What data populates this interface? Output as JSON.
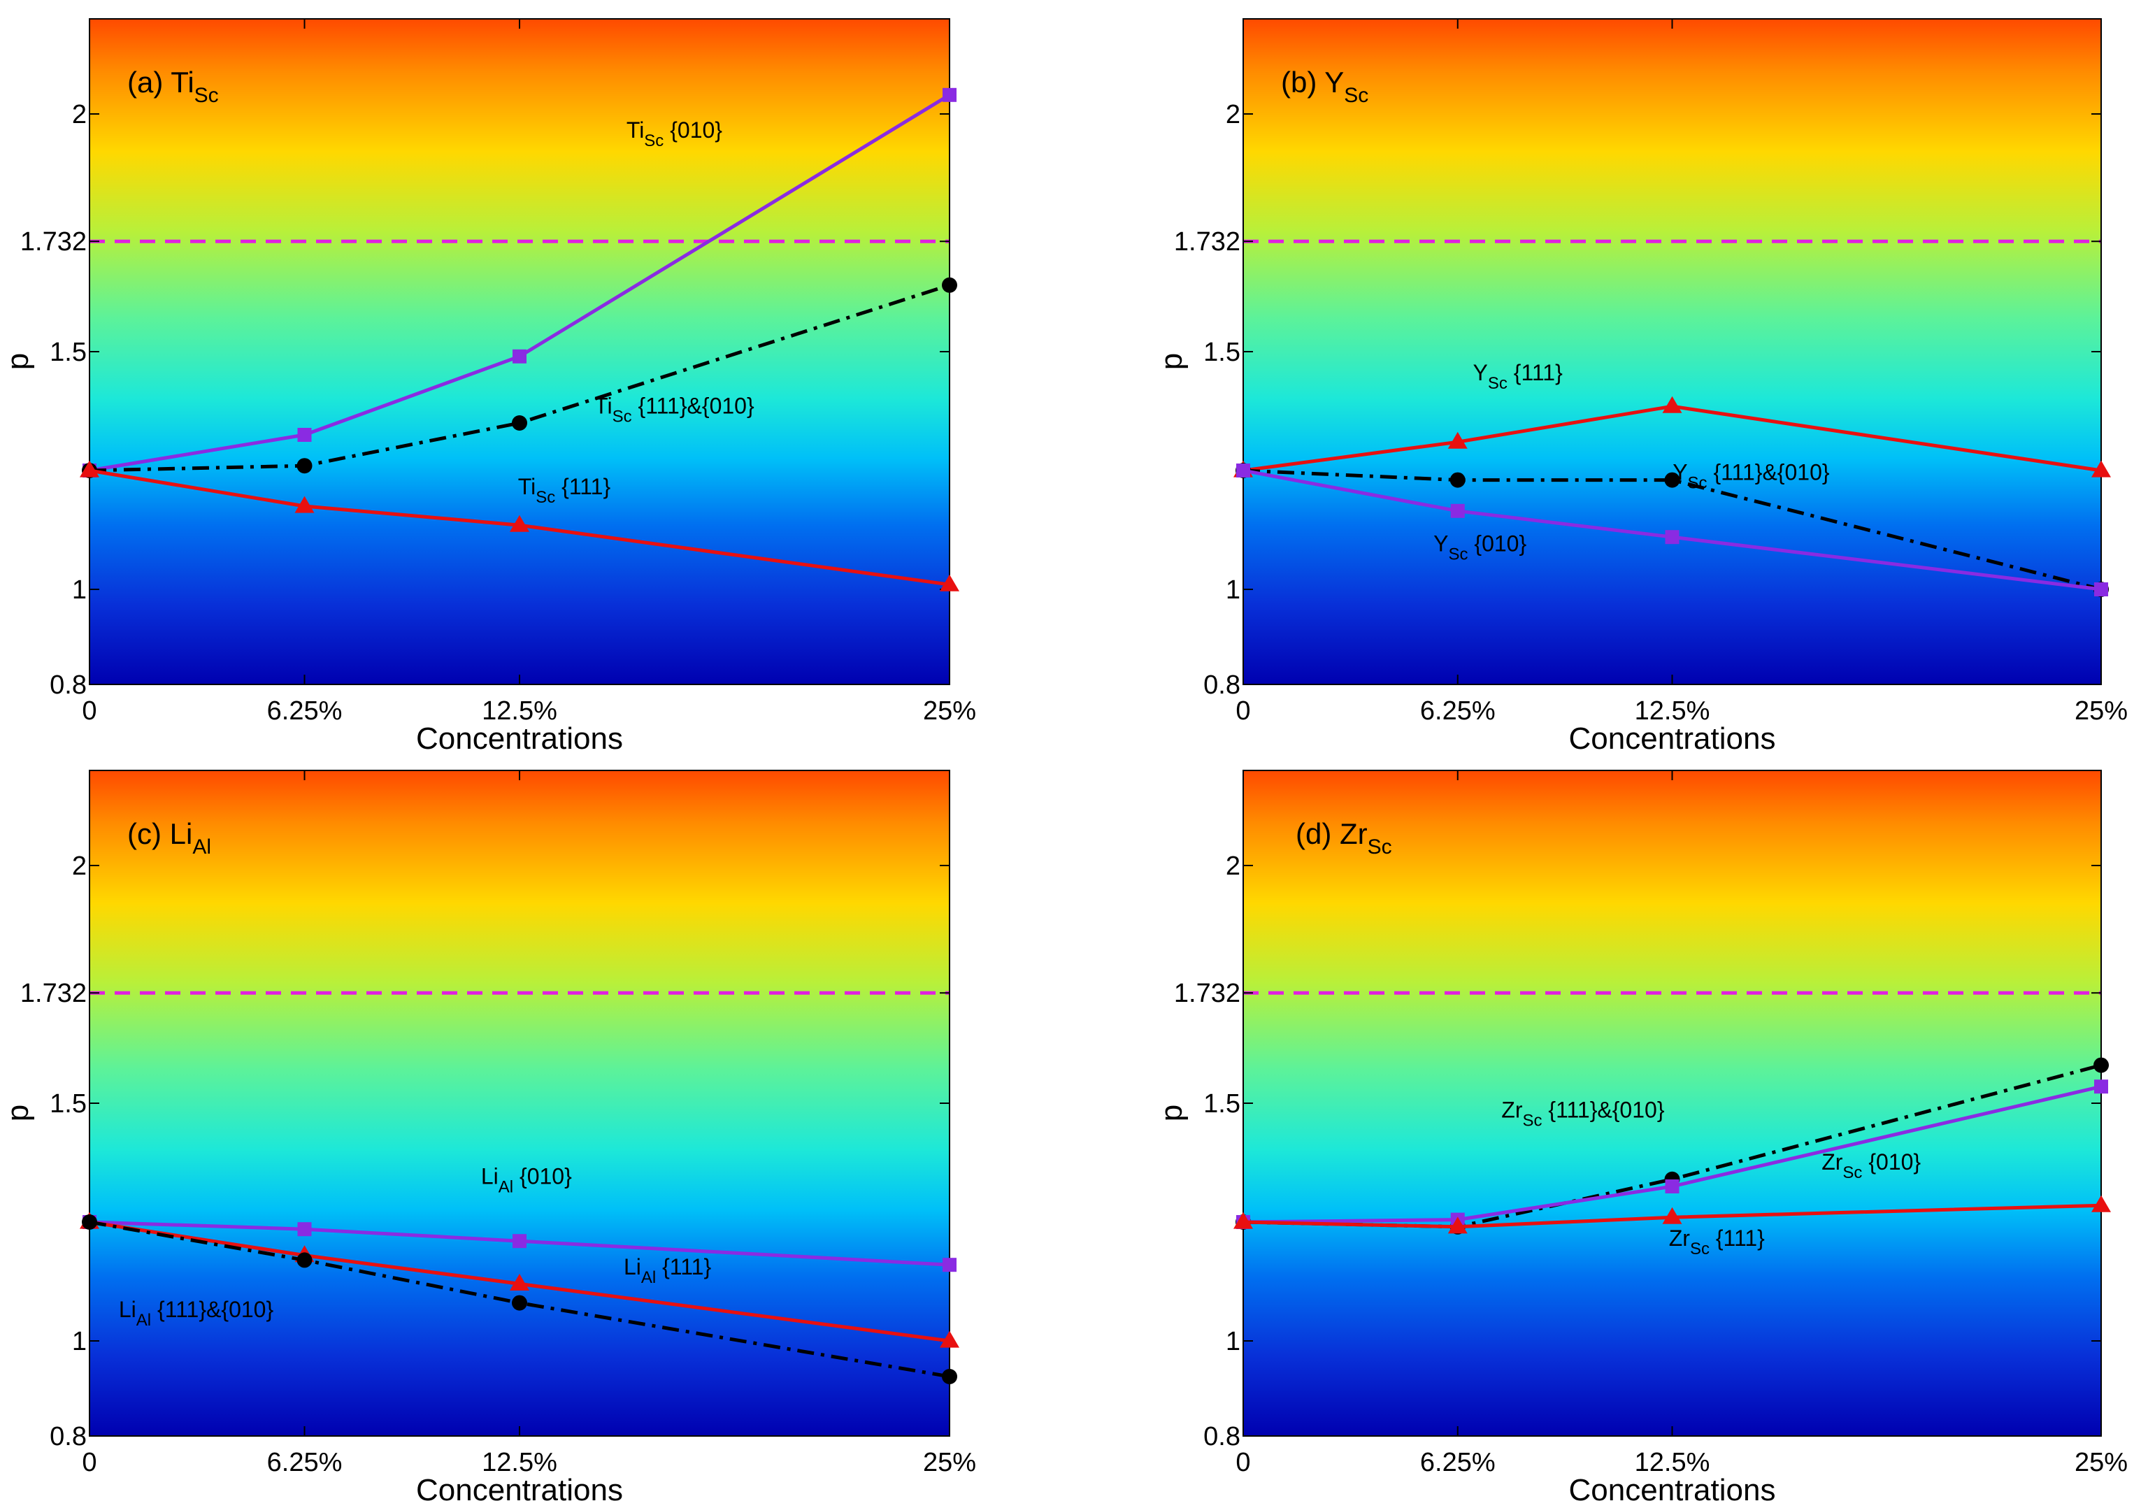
{
  "chart_data": [
    {
      "type": "line",
      "panel": "(a)",
      "title_main": "Ti",
      "title_sub": "Sc",
      "xlabel": "Concentrations",
      "ylabel": "p",
      "x_ticks": [
        "0",
        "6.25%",
        "12.5%",
        "25%"
      ],
      "x": [
        0,
        6.25,
        12.5,
        25
      ],
      "xlim": [
        0,
        25
      ],
      "ylim": [
        0.8,
        2.2
      ],
      "y_ticks": [
        0.8,
        1,
        1.5,
        1.732,
        2
      ],
      "y_tick_labels": [
        "0.8",
        "1",
        "1.5",
        "1.732",
        "2"
      ],
      "reference_line": {
        "value": 1.732,
        "color": "#e020e0"
      },
      "series": [
        {
          "name": "{010}",
          "label_main": "Ti",
          "label_sub": "Sc",
          "label_rest": "  {010}",
          "color": "#8a2be2",
          "style": "solid",
          "marker": "square",
          "values": [
            1.25,
            1.325,
            1.49,
            2.04
          ]
        },
        {
          "name": "{111}&{010}",
          "label_main": "Ti",
          "label_sub": "Sc",
          "label_rest": " {111}&{010}",
          "color": "#000000",
          "style": "dashdot",
          "marker": "circle",
          "values": [
            1.25,
            1.26,
            1.35,
            1.64
          ]
        },
        {
          "name": "{111}",
          "label_main": "Ti",
          "label_sub": "Sc",
          "label_rest": " {111}",
          "color": "#e81010",
          "style": "solid",
          "marker": "triangle",
          "values": [
            1.25,
            1.175,
            1.135,
            1.01
          ]
        }
      ]
    },
    {
      "type": "line",
      "panel": "(b)",
      "title_main": "Y",
      "title_sub": "Sc",
      "xlabel": "Concentrations",
      "ylabel": "p",
      "x_ticks": [
        "0",
        "6.25%",
        "12.5%",
        "25%"
      ],
      "x": [
        0,
        6.25,
        12.5,
        25
      ],
      "xlim": [
        0,
        25
      ],
      "ylim": [
        0.8,
        2.2
      ],
      "y_ticks": [
        0.8,
        1,
        1.5,
        1.732,
        2
      ],
      "y_tick_labels": [
        "0.8",
        "1",
        "1.5",
        "1.732",
        "2"
      ],
      "reference_line": {
        "value": 1.732,
        "color": "#e020e0"
      },
      "series": [
        {
          "name": "{111}",
          "label_main": "Y",
          "label_sub": "Sc",
          "label_rest": " {111}",
          "color": "#e81010",
          "style": "solid",
          "marker": "triangle",
          "values": [
            1.25,
            1.31,
            1.385,
            1.25
          ]
        },
        {
          "name": "{111}&{010}",
          "label_main": "Y",
          "label_sub": "Sc",
          "label_rest": " {111}&{010}",
          "color": "#000000",
          "style": "dashdot",
          "marker": "circle",
          "values": [
            1.25,
            1.23,
            1.23,
            1.0
          ]
        },
        {
          "name": "{010}",
          "label_main": "Y",
          "label_sub": "Sc",
          "label_rest": " {010}",
          "color": "#8a2be2",
          "style": "solid",
          "marker": "square",
          "values": [
            1.25,
            1.165,
            1.11,
            1.0
          ]
        }
      ]
    },
    {
      "type": "line",
      "panel": "(c)",
      "title_main": "Li",
      "title_sub": "Al",
      "xlabel": "Concentrations",
      "ylabel": "p",
      "x_ticks": [
        "0",
        "6.25%",
        "12.5%",
        "25%"
      ],
      "x": [
        0,
        6.25,
        12.5,
        25
      ],
      "xlim": [
        0,
        25
      ],
      "ylim": [
        0.8,
        2.2
      ],
      "y_ticks": [
        0.8,
        1,
        1.5,
        1.732,
        2
      ],
      "y_tick_labels": [
        "0.8",
        "1",
        "1.5",
        "1.732",
        "2"
      ],
      "reference_line": {
        "value": 1.732,
        "color": "#e020e0"
      },
      "series": [
        {
          "name": "{010}",
          "label_main": "Li",
          "label_sub": "Al",
          "label_rest": "  {010}",
          "color": "#8a2be2",
          "style": "solid",
          "marker": "square",
          "values": [
            1.25,
            1.235,
            1.21,
            1.16
          ]
        },
        {
          "name": "{111}",
          "label_main": "Li",
          "label_sub": "Al",
          "label_rest": " {111}",
          "color": "#e81010",
          "style": "solid",
          "marker": "triangle",
          "values": [
            1.25,
            1.18,
            1.12,
            1.0
          ]
        },
        {
          "name": "{111}&{010}",
          "label_main": "Li",
          "label_sub": "Al",
          "label_rest": " {111}&{010}",
          "color": "#000000",
          "style": "dashdot",
          "marker": "circle",
          "values": [
            1.25,
            1.17,
            1.08,
            0.925
          ]
        }
      ]
    },
    {
      "type": "line",
      "panel": "(d)",
      "title_main": "Zr",
      "title_sub": "Sc",
      "xlabel": "Concentrations",
      "ylabel": "p",
      "x_ticks": [
        "0",
        "6.25%",
        "12.5%",
        "25%"
      ],
      "x": [
        0,
        6.25,
        12.5,
        25
      ],
      "xlim": [
        0,
        25
      ],
      "ylim": [
        0.8,
        2.2
      ],
      "y_ticks": [
        0.8,
        1,
        1.5,
        1.732,
        2
      ],
      "y_tick_labels": [
        "0.8",
        "1",
        "1.5",
        "1.732",
        "2"
      ],
      "reference_line": {
        "value": 1.732,
        "color": "#e020e0"
      },
      "series": [
        {
          "name": "{111}&{010}",
          "label_main": "Zr",
          "label_sub": "Sc",
          "label_rest": " {111}&{010}",
          "color": "#000000",
          "style": "dashdot",
          "marker": "circle",
          "values": [
            1.25,
            1.24,
            1.34,
            1.58
          ]
        },
        {
          "name": "{010}",
          "label_main": "Zr",
          "label_sub": "Sc",
          "label_rest": " {010}",
          "color": "#8a2be2",
          "style": "solid",
          "marker": "square",
          "values": [
            1.25,
            1.255,
            1.325,
            1.535
          ]
        },
        {
          "name": "{111}",
          "label_main": "Zr",
          "label_sub": "Sc",
          "label_rest": " {111}",
          "color": "#e81010",
          "style": "solid",
          "marker": "triangle",
          "values": [
            1.25,
            1.24,
            1.26,
            1.285
          ]
        }
      ]
    }
  ]
}
